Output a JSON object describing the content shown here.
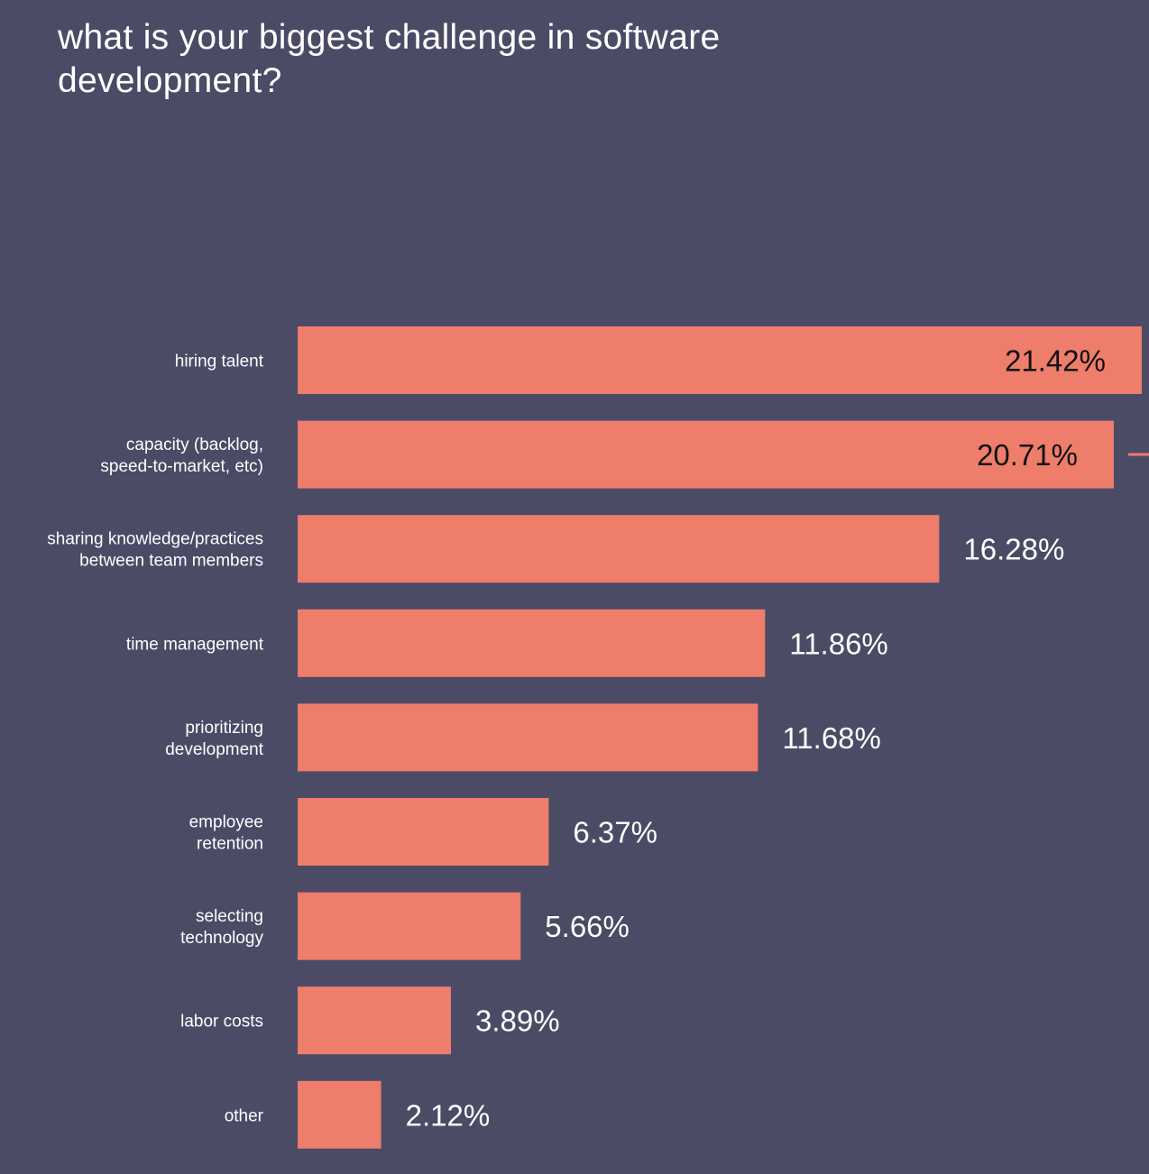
{
  "chart_data": {
    "type": "bar",
    "orientation": "horizontal",
    "title": "what is your biggest challenge in software development?",
    "categories": [
      [
        "hiring talent"
      ],
      [
        "capacity (backlog,",
        "speed-to-market, etc)"
      ],
      [
        "sharing knowledge/practices",
        "between team members"
      ],
      [
        "time management"
      ],
      [
        "prioritizing",
        "development"
      ],
      [
        "employee",
        "retention"
      ],
      [
        "selecting",
        "technology"
      ],
      [
        "labor costs"
      ],
      [
        "other"
      ]
    ],
    "values": [
      21.42,
      20.71,
      16.28,
      11.86,
      11.68,
      6.37,
      5.66,
      3.89,
      2.12
    ],
    "value_labels": [
      "21.42%",
      "20.71%",
      "16.28%",
      "11.86%",
      "11.68%",
      "6.37%",
      "5.66%",
      "3.89%",
      "2.12%"
    ],
    "xlim": [
      0,
      21.42
    ],
    "grid": false,
    "legend": "none"
  },
  "colors": {
    "background": "#4b4b66",
    "bar": "#ee7d6b",
    "text_light": "#ffffff",
    "text_dark": "#111111"
  }
}
